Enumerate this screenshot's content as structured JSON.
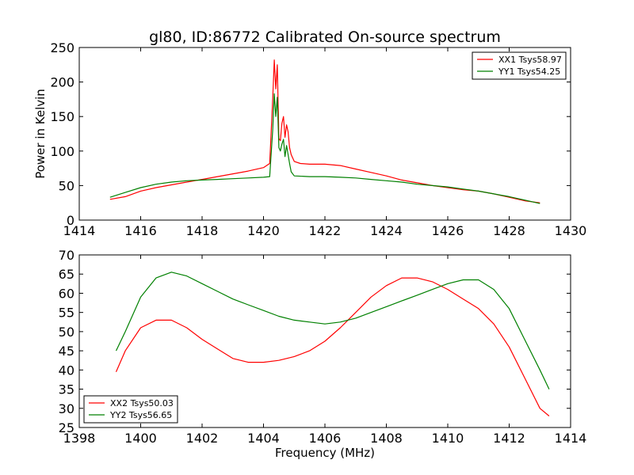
{
  "chart_data": [
    {
      "type": "line",
      "title": "gl80, ID:86772 Calibrated On-source spectrum",
      "xlabel": "",
      "ylabel": "Power in Kelvin",
      "xlim": [
        1414,
        1430
      ],
      "ylim": [
        0,
        250
      ],
      "xticks": [
        1414,
        1416,
        1418,
        1420,
        1422,
        1424,
        1426,
        1428,
        1430
      ],
      "yticks": [
        0,
        50,
        100,
        150,
        200,
        250
      ],
      "grid": false,
      "legend_position": "top-right",
      "series": [
        {
          "name": "XX1 Tsys58.97",
          "color": "#ff0000",
          "points": [
            [
              1415.0,
              30
            ],
            [
              1415.5,
              34
            ],
            [
              1416.0,
              42
            ],
            [
              1416.5,
              47
            ],
            [
              1417.0,
              51
            ],
            [
              1417.5,
              55
            ],
            [
              1418.0,
              59
            ],
            [
              1418.5,
              63
            ],
            [
              1419.0,
              67
            ],
            [
              1419.5,
              71
            ],
            [
              1420.0,
              76
            ],
            [
              1420.2,
              82
            ],
            [
              1420.3,
              175
            ],
            [
              1420.35,
              232
            ],
            [
              1420.4,
              190
            ],
            [
              1420.45,
              225
            ],
            [
              1420.5,
              118
            ],
            [
              1420.55,
              115
            ],
            [
              1420.6,
              140
            ],
            [
              1420.65,
              150
            ],
            [
              1420.7,
              120
            ],
            [
              1420.75,
              138
            ],
            [
              1420.8,
              128
            ],
            [
              1420.85,
              105
            ],
            [
              1420.9,
              95
            ],
            [
              1421.0,
              85
            ],
            [
              1421.2,
              82
            ],
            [
              1421.5,
              81
            ],
            [
              1422.0,
              81
            ],
            [
              1422.5,
              79
            ],
            [
              1423.0,
              74
            ],
            [
              1423.5,
              69
            ],
            [
              1424.0,
              64
            ],
            [
              1424.5,
              58
            ],
            [
              1425.0,
              54
            ],
            [
              1425.5,
              50
            ],
            [
              1426.0,
              47
            ],
            [
              1426.5,
              44
            ],
            [
              1427.0,
              42
            ],
            [
              1427.5,
              38
            ],
            [
              1428.0,
              33
            ],
            [
              1428.5,
              28
            ],
            [
              1429.0,
              25
            ]
          ]
        },
        {
          "name": "YY1 Tsys54.25",
          "color": "#008000",
          "points": [
            [
              1415.0,
              33
            ],
            [
              1415.5,
              40
            ],
            [
              1416.0,
              47
            ],
            [
              1416.5,
              52
            ],
            [
              1417.0,
              55
            ],
            [
              1417.5,
              57
            ],
            [
              1418.0,
              58
            ],
            [
              1418.5,
              59
            ],
            [
              1419.0,
              60
            ],
            [
              1419.5,
              61
            ],
            [
              1420.0,
              62
            ],
            [
              1420.2,
              63
            ],
            [
              1420.3,
              130
            ],
            [
              1420.35,
              183
            ],
            [
              1420.4,
              150
            ],
            [
              1420.45,
              178
            ],
            [
              1420.5,
              105
            ],
            [
              1420.55,
              100
            ],
            [
              1420.6,
              110
            ],
            [
              1420.65,
              117
            ],
            [
              1420.7,
              92
            ],
            [
              1420.75,
              108
            ],
            [
              1420.8,
              95
            ],
            [
              1420.85,
              82
            ],
            [
              1420.9,
              70
            ],
            [
              1421.0,
              64
            ],
            [
              1421.5,
              63
            ],
            [
              1422.0,
              63
            ],
            [
              1422.5,
              62
            ],
            [
              1423.0,
              61
            ],
            [
              1423.5,
              59
            ],
            [
              1424.0,
              57
            ],
            [
              1424.5,
              55
            ],
            [
              1425.0,
              52
            ],
            [
              1425.5,
              50
            ],
            [
              1426.0,
              48
            ],
            [
              1426.5,
              45
            ],
            [
              1427.0,
              42
            ],
            [
              1427.5,
              38
            ],
            [
              1428.0,
              34
            ],
            [
              1428.5,
              29
            ],
            [
              1429.0,
              24
            ]
          ]
        }
      ]
    },
    {
      "type": "line",
      "title": "",
      "xlabel": "Frequency (MHz)",
      "ylabel": "",
      "xlim": [
        1398,
        1414
      ],
      "ylim": [
        25,
        70
      ],
      "xticks": [
        1398,
        1400,
        1402,
        1404,
        1406,
        1408,
        1410,
        1412,
        1414
      ],
      "yticks": [
        25,
        30,
        35,
        40,
        45,
        50,
        55,
        60,
        65,
        70
      ],
      "grid": false,
      "legend_position": "bottom-left",
      "series": [
        {
          "name": "XX2 Tsys50.03",
          "color": "#ff0000",
          "points": [
            [
              1399.2,
              39.5
            ],
            [
              1399.5,
              45
            ],
            [
              1400.0,
              51
            ],
            [
              1400.5,
              53
            ],
            [
              1401.0,
              53
            ],
            [
              1401.5,
              51
            ],
            [
              1402.0,
              48
            ],
            [
              1402.5,
              45.5
            ],
            [
              1403.0,
              43
            ],
            [
              1403.5,
              42
            ],
            [
              1404.0,
              42
            ],
            [
              1404.5,
              42.5
            ],
            [
              1405.0,
              43.5
            ],
            [
              1405.5,
              45
            ],
            [
              1406.0,
              47.5
            ],
            [
              1406.5,
              51
            ],
            [
              1407.0,
              55
            ],
            [
              1407.5,
              59
            ],
            [
              1408.0,
              62
            ],
            [
              1408.5,
              64
            ],
            [
              1409.0,
              64
            ],
            [
              1409.5,
              63
            ],
            [
              1410.0,
              61
            ],
            [
              1410.5,
              58.5
            ],
            [
              1411.0,
              56
            ],
            [
              1411.5,
              52
            ],
            [
              1412.0,
              46
            ],
            [
              1412.5,
              38
            ],
            [
              1413.0,
              30
            ],
            [
              1413.3,
              28
            ]
          ]
        },
        {
          "name": "YY2 Tsys56.65",
          "color": "#008000",
          "points": [
            [
              1399.2,
              45
            ],
            [
              1399.5,
              50
            ],
            [
              1400.0,
              59
            ],
            [
              1400.5,
              64
            ],
            [
              1401.0,
              65.5
            ],
            [
              1401.5,
              64.5
            ],
            [
              1402.0,
              62.5
            ],
            [
              1402.5,
              60.5
            ],
            [
              1403.0,
              58.5
            ],
            [
              1403.5,
              57
            ],
            [
              1404.0,
              55.5
            ],
            [
              1404.5,
              54
            ],
            [
              1405.0,
              53
            ],
            [
              1405.5,
              52.5
            ],
            [
              1406.0,
              52
            ],
            [
              1406.5,
              52.5
            ],
            [
              1407.0,
              53.5
            ],
            [
              1407.5,
              55
            ],
            [
              1408.0,
              56.5
            ],
            [
              1408.5,
              58
            ],
            [
              1409.0,
              59.5
            ],
            [
              1409.5,
              61
            ],
            [
              1410.0,
              62.5
            ],
            [
              1410.5,
              63.5
            ],
            [
              1411.0,
              63.5
            ],
            [
              1411.5,
              61
            ],
            [
              1412.0,
              56
            ],
            [
              1412.5,
              48
            ],
            [
              1413.0,
              40
            ],
            [
              1413.3,
              35
            ]
          ]
        }
      ]
    }
  ]
}
